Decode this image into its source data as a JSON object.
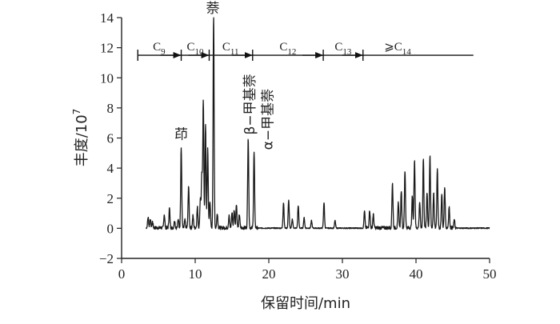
{
  "chart_data": {
    "type": "line",
    "xlabel": "保留时间/min",
    "ylabel": "丰度/10",
    "ylabel_sup": "7",
    "xlim": [
      0,
      50
    ],
    "ylim": [
      -2,
      14
    ],
    "xticks": [
      0,
      10,
      20,
      30,
      40,
      50
    ],
    "yticks": [
      -2,
      0,
      2,
      4,
      6,
      8,
      10,
      12,
      14
    ],
    "grid": false,
    "series": [
      {
        "peaks": [
          {
            "x": 3.6,
            "y": 0.7
          },
          {
            "x": 3.9,
            "y": 0.6
          },
          {
            "x": 4.2,
            "y": 0.4
          },
          {
            "x": 5.8,
            "y": 0.9
          },
          {
            "x": 6.5,
            "y": 1.3
          },
          {
            "x": 7.2,
            "y": 0.5
          },
          {
            "x": 7.7,
            "y": 0.6
          },
          {
            "x": 8.1,
            "y": 5.3
          },
          {
            "x": 8.6,
            "y": 0.5
          },
          {
            "x": 9.1,
            "y": 2.8
          },
          {
            "x": 9.7,
            "y": 0.8
          },
          {
            "x": 10.3,
            "y": 1.4
          },
          {
            "x": 10.7,
            "y": 2.0
          },
          {
            "x": 10.9,
            "y": 3.5
          },
          {
            "x": 11.1,
            "y": 8.5
          },
          {
            "x": 11.4,
            "y": 6.8
          },
          {
            "x": 11.7,
            "y": 5.3
          },
          {
            "x": 12.0,
            "y": 1.8
          },
          {
            "x": 12.5,
            "y": 14.0
          },
          {
            "x": 13.0,
            "y": 1.0
          },
          {
            "x": 14.6,
            "y": 0.8
          },
          {
            "x": 15.0,
            "y": 1.0
          },
          {
            "x": 15.3,
            "y": 1.2
          },
          {
            "x": 15.6,
            "y": 1.6
          },
          {
            "x": 16.0,
            "y": 0.9
          },
          {
            "x": 17.2,
            "y": 6.0
          },
          {
            "x": 18.0,
            "y": 5.0
          },
          {
            "x": 22.0,
            "y": 1.7
          },
          {
            "x": 22.7,
            "y": 1.9
          },
          {
            "x": 23.2,
            "y": 0.6
          },
          {
            "x": 24.0,
            "y": 1.5
          },
          {
            "x": 24.8,
            "y": 0.7
          },
          {
            "x": 25.8,
            "y": 0.5
          },
          {
            "x": 27.5,
            "y": 1.7
          },
          {
            "x": 29.0,
            "y": 0.5
          },
          {
            "x": 33.0,
            "y": 1.1
          },
          {
            "x": 33.7,
            "y": 1.2
          },
          {
            "x": 34.2,
            "y": 0.9
          },
          {
            "x": 36.8,
            "y": 3.0
          },
          {
            "x": 37.6,
            "y": 1.7
          },
          {
            "x": 38.0,
            "y": 2.5
          },
          {
            "x": 38.5,
            "y": 3.8
          },
          {
            "x": 39.5,
            "y": 2.1
          },
          {
            "x": 39.8,
            "y": 4.6
          },
          {
            "x": 40.5,
            "y": 1.7
          },
          {
            "x": 41.0,
            "y": 4.6
          },
          {
            "x": 41.5,
            "y": 2.4
          },
          {
            "x": 41.9,
            "y": 4.8
          },
          {
            "x": 42.4,
            "y": 2.3
          },
          {
            "x": 42.9,
            "y": 4.0
          },
          {
            "x": 43.5,
            "y": 2.2
          },
          {
            "x": 43.9,
            "y": 2.7
          },
          {
            "x": 44.5,
            "y": 1.4
          },
          {
            "x": 45.2,
            "y": 0.5
          }
        ]
      }
    ],
    "peak_labels": [
      {
        "text": "茚",
        "x": 8.1,
        "y": 5.3
      },
      {
        "text": "萘",
        "x": 12.5,
        "y": 14.0
      },
      {
        "text": "β−甲基萘",
        "x": 17.2,
        "y": 6.0
      },
      {
        "text": "α−甲基萘",
        "x": 18.0,
        "y": 5.0
      }
    ],
    "carbon_ranges": {
      "y": 11.5,
      "start": 2.2,
      "end": 47.8,
      "boundaries": [
        8.1,
        11.9,
        17.8,
        27.4,
        32.8
      ],
      "labels": [
        {
          "main": "C",
          "sub": "9",
          "x": 5.1
        },
        {
          "main": "C",
          "sub": "10",
          "x": 10.0
        },
        {
          "main": "C",
          "sub": "11",
          "x": 14.8
        },
        {
          "main": "C",
          "sub": "12",
          "x": 22.6
        },
        {
          "main": "C",
          "sub": "13",
          "x": 30.1
        },
        {
          "main": "⩾C",
          "sub": "14",
          "x": 37.5
        }
      ]
    }
  }
}
